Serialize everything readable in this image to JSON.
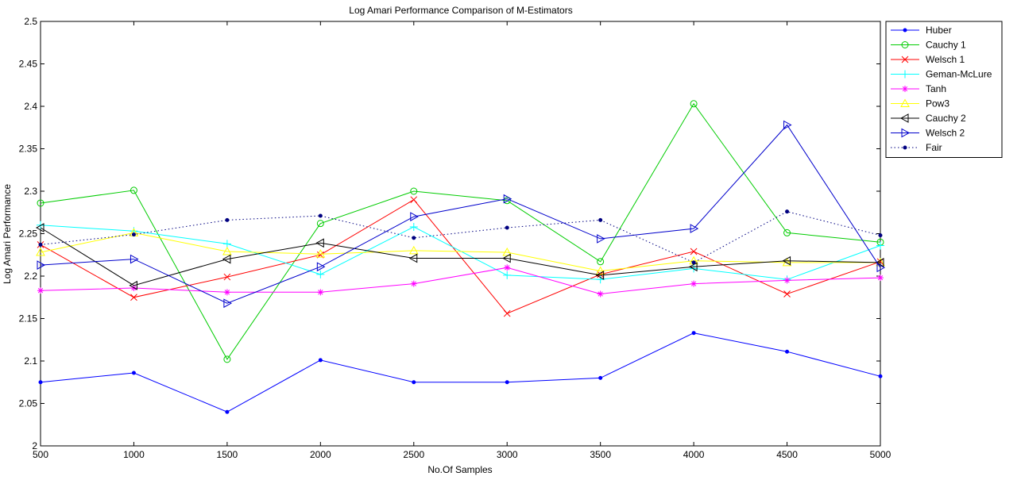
{
  "chart_data": {
    "type": "line",
    "title": "Log Amari Performance Comparison of M-Estimators",
    "xlabel": "No.Of Samples",
    "ylabel": "Log Amari Performance",
    "x": [
      500,
      1000,
      1500,
      2000,
      2500,
      3000,
      3500,
      4000,
      4500,
      5000
    ],
    "xlim": [
      500,
      5000
    ],
    "ylim": [
      2.0,
      2.5
    ],
    "xticks": [
      "500",
      "1000",
      "1500",
      "2000",
      "2500",
      "3000",
      "3500",
      "4000",
      "4500",
      "5000"
    ],
    "yticks": [
      "2",
      "2.05",
      "2.1",
      "2.15",
      "2.2",
      "2.25",
      "2.3",
      "2.35",
      "2.4",
      "2.45",
      "2.5"
    ],
    "grid": false,
    "legend_position": "outside-top-right",
    "series": [
      {
        "name": "Huber",
        "color": "#0000ff",
        "marker": "dot",
        "line": "solid",
        "values": [
          2.075,
          2.086,
          2.04,
          2.101,
          2.075,
          2.075,
          2.08,
          2.133,
          2.111,
          2.082
        ]
      },
      {
        "name": "Cauchy 1",
        "color": "#00cc00",
        "marker": "circle",
        "line": "solid",
        "values": [
          2.286,
          2.301,
          2.102,
          2.262,
          2.3,
          2.289,
          2.217,
          2.403,
          2.251,
          2.24
        ]
      },
      {
        "name": "Welsch 1",
        "color": "#ff0000",
        "marker": "x",
        "line": "solid",
        "values": [
          2.237,
          2.175,
          2.199,
          2.225,
          2.29,
          2.156,
          2.202,
          2.229,
          2.179,
          2.217
        ]
      },
      {
        "name": "Geman-McLure",
        "color": "#00ffff",
        "marker": "plus",
        "line": "solid",
        "values": [
          2.26,
          2.253,
          2.238,
          2.202,
          2.258,
          2.201,
          2.196,
          2.209,
          2.196,
          2.236
        ]
      },
      {
        "name": "Tanh",
        "color": "#ff00ff",
        "marker": "star",
        "line": "solid",
        "values": [
          2.183,
          2.186,
          2.181,
          2.181,
          2.191,
          2.21,
          2.179,
          2.191,
          2.195,
          2.198
        ]
      },
      {
        "name": "Pow3",
        "color": "#ffff00",
        "marker": "triangle-up",
        "line": "solid",
        "values": [
          2.228,
          2.251,
          2.229,
          2.226,
          2.23,
          2.228,
          2.206,
          2.218,
          2.216,
          2.216
        ]
      },
      {
        "name": "Cauchy 2",
        "color": "#000000",
        "marker": "triangle-left",
        "line": "solid",
        "values": [
          2.257,
          2.189,
          2.22,
          2.239,
          2.221,
          2.221,
          2.201,
          2.211,
          2.218,
          2.216
        ]
      },
      {
        "name": "Welsch 2",
        "color": "#0000cc",
        "marker": "triangle-right",
        "line": "solid",
        "values": [
          2.213,
          2.22,
          2.168,
          2.211,
          2.27,
          2.291,
          2.244,
          2.256,
          2.378,
          2.21
        ]
      },
      {
        "name": "Fair",
        "color": "#000080",
        "marker": "dot",
        "line": "dotted",
        "values": [
          2.237,
          2.249,
          2.266,
          2.271,
          2.245,
          2.257,
          2.266,
          2.216,
          2.276,
          2.248
        ]
      }
    ]
  }
}
